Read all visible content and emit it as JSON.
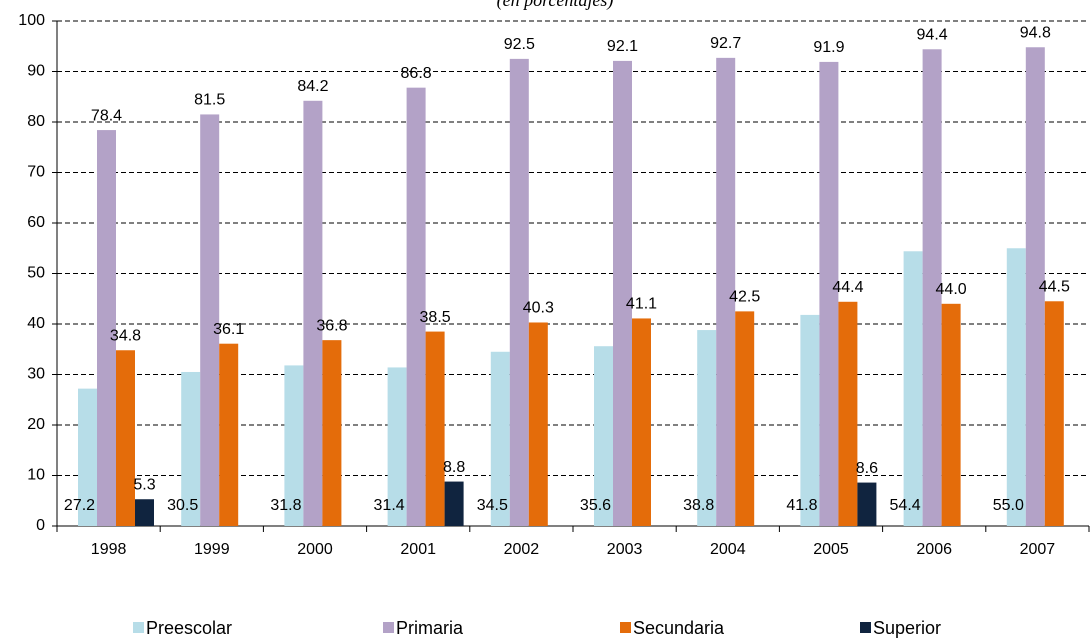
{
  "chart_data": {
    "type": "bar",
    "subtitle": "(en porcentajes)",
    "categories": [
      "1998",
      "1999",
      "2000",
      "2001",
      "2002",
      "2003",
      "2004",
      "2005",
      "2006",
      "2007"
    ],
    "series": [
      {
        "name": "Preescolar",
        "color": "#b7dde8",
        "values": [
          27.2,
          30.5,
          31.8,
          31.4,
          34.5,
          35.6,
          38.8,
          41.8,
          54.4,
          55.0
        ],
        "value_labels": [
          "27.2",
          "30.5",
          "31.8",
          "31.4",
          "34.5",
          "35.6",
          "38.8",
          "41.8",
          "54.4",
          "55.0"
        ]
      },
      {
        "name": "Primaria",
        "color": "#b3a2c7",
        "values": [
          78.4,
          81.5,
          84.2,
          86.8,
          92.5,
          92.1,
          92.7,
          91.9,
          94.4,
          94.8
        ],
        "value_labels": [
          "78.4",
          "81.5",
          "84.2",
          "86.8",
          "92.5",
          "92.1",
          "92.7",
          "91.9",
          "94.4",
          "94.8"
        ]
      },
      {
        "name": "Secundaria",
        "color": "#e46c0a",
        "values": [
          34.8,
          36.1,
          36.8,
          38.5,
          40.3,
          41.1,
          42.5,
          44.4,
          44.0,
          44.5
        ],
        "value_labels": [
          "34.8",
          "36.1",
          "36.8",
          "38.5",
          "40.3",
          "41.1",
          "42.5",
          "44.4",
          "44.0",
          "44.5"
        ]
      },
      {
        "name": "Superior",
        "color": "#10243f",
        "values": [
          5.3,
          null,
          null,
          8.8,
          null,
          null,
          null,
          8.6,
          null,
          null
        ],
        "value_labels": [
          "5.3",
          null,
          null,
          "8.8",
          null,
          null,
          null,
          "8.6",
          null,
          null
        ]
      }
    ],
    "ylim": [
      0,
      100
    ],
    "yticks": [
      0,
      10,
      20,
      30,
      40,
      50,
      60,
      70,
      80,
      90,
      100
    ],
    "grid": true,
    "legend": "bottom"
  }
}
